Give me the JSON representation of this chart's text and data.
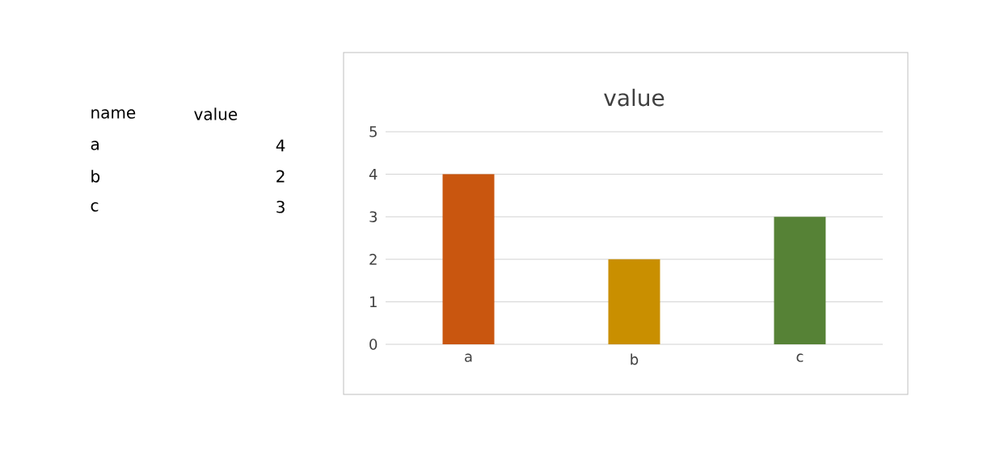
{
  "chart_data": {
    "type": "bar",
    "title": "value",
    "categories": [
      "a",
      "b",
      "c"
    ],
    "values": [
      4,
      2,
      3
    ],
    "colors": [
      "#c9560f",
      "#c98f00",
      "#568236"
    ],
    "ylim": [
      0,
      5
    ],
    "yticks": [
      0,
      1,
      2,
      3,
      4,
      5
    ],
    "grid": "y",
    "annotations": [
      "name",
      "value",
      "4",
      "2",
      "3"
    ]
  }
}
